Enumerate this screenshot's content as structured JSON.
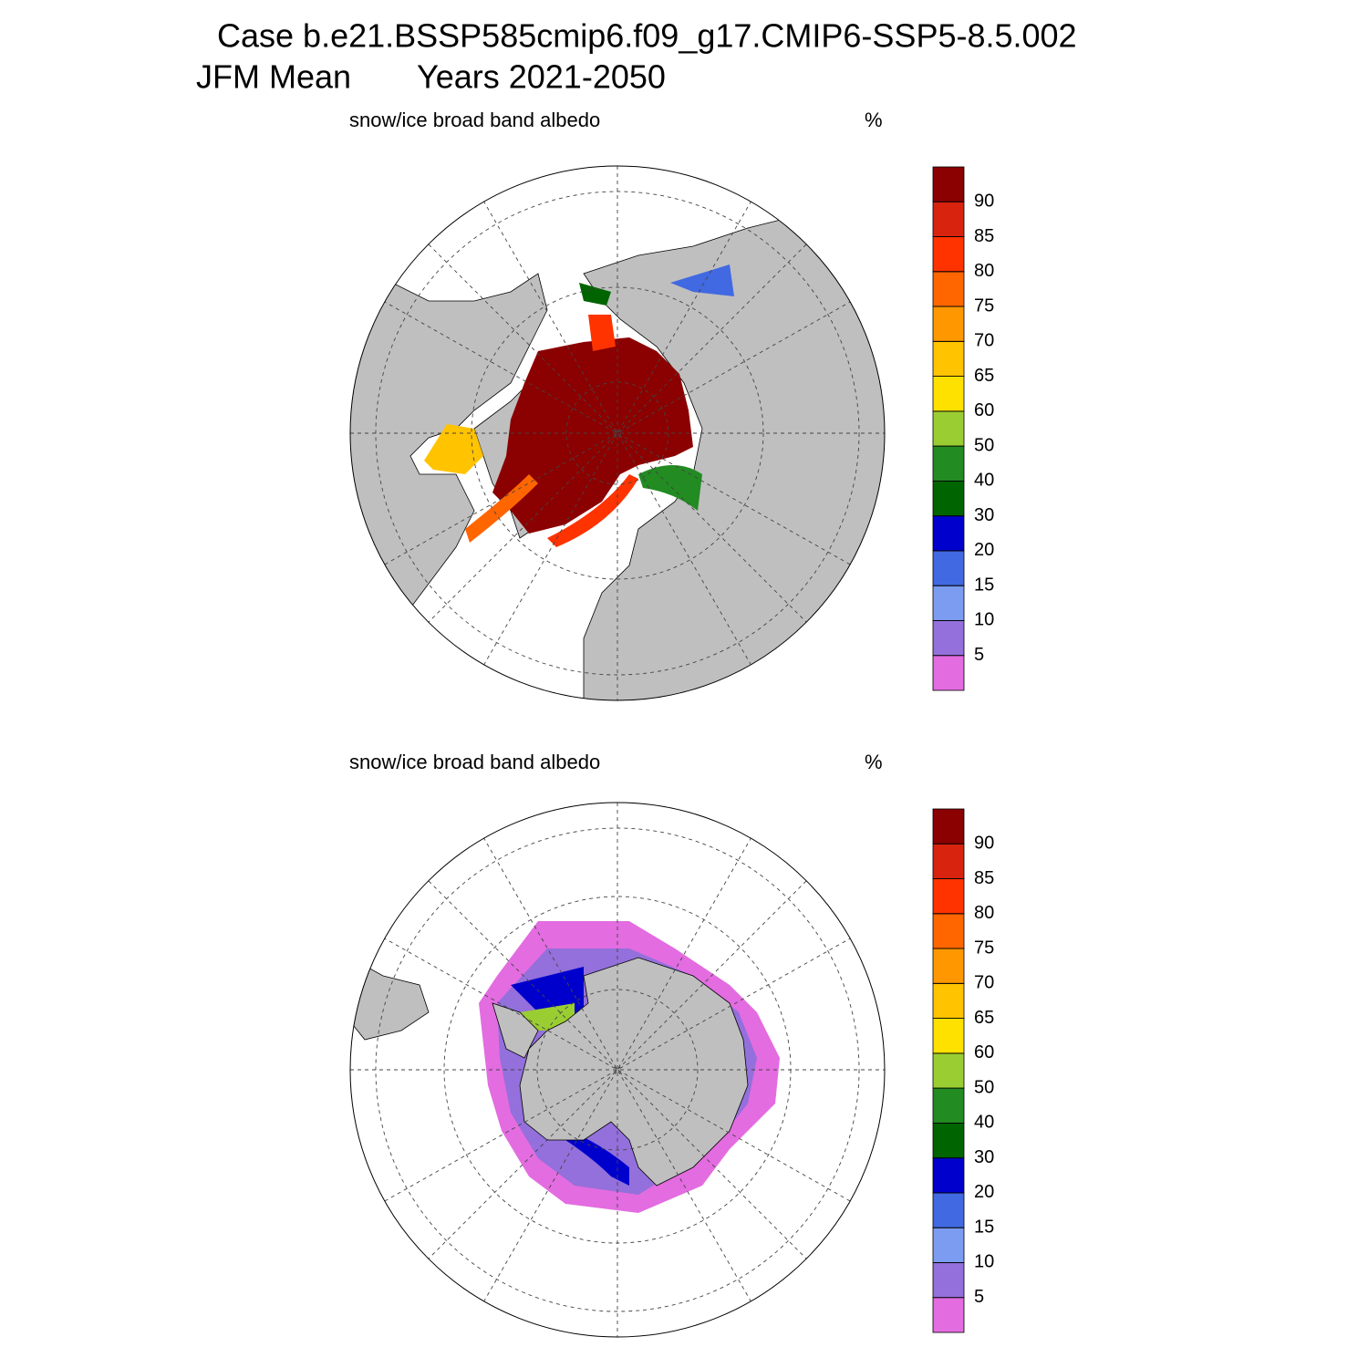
{
  "header": {
    "title": "Case b.e21.BSSP585cmip6.f09_g17.CMIP6-SSP5-8.5.002",
    "season": "JFM Mean",
    "years": "Years 2021-2050"
  },
  "panels": [
    {
      "title": "snow/ice broad band albedo",
      "units": "%",
      "levels": [
        5,
        10,
        15,
        20,
        30,
        40,
        50,
        60,
        65,
        70,
        75,
        80,
        85,
        90
      ],
      "colors": [
        "#e36ce0",
        "#9370db",
        "#7b9cf0",
        "#4169e1",
        "#0000cd",
        "#006400",
        "#228b22",
        "#9acd32",
        "#ffe100",
        "#ffc300",
        "#ff9800",
        "#ff6600",
        "#ff3300",
        "#d8230f",
        "#8b0000"
      ]
    },
    {
      "title": "snow/ice broad band albedo",
      "units": "%",
      "levels": [
        5,
        10,
        15,
        20,
        30,
        40,
        50,
        60,
        65,
        70,
        75,
        80,
        85,
        90
      ],
      "colors": [
        "#e36ce0",
        "#9370db",
        "#7b9cf0",
        "#4169e1",
        "#0000cd",
        "#006400",
        "#228b22",
        "#9acd32",
        "#ffe100",
        "#ffc300",
        "#ff9800",
        "#ff6600",
        "#ff3300",
        "#d8230f",
        "#8b0000"
      ]
    }
  ]
}
